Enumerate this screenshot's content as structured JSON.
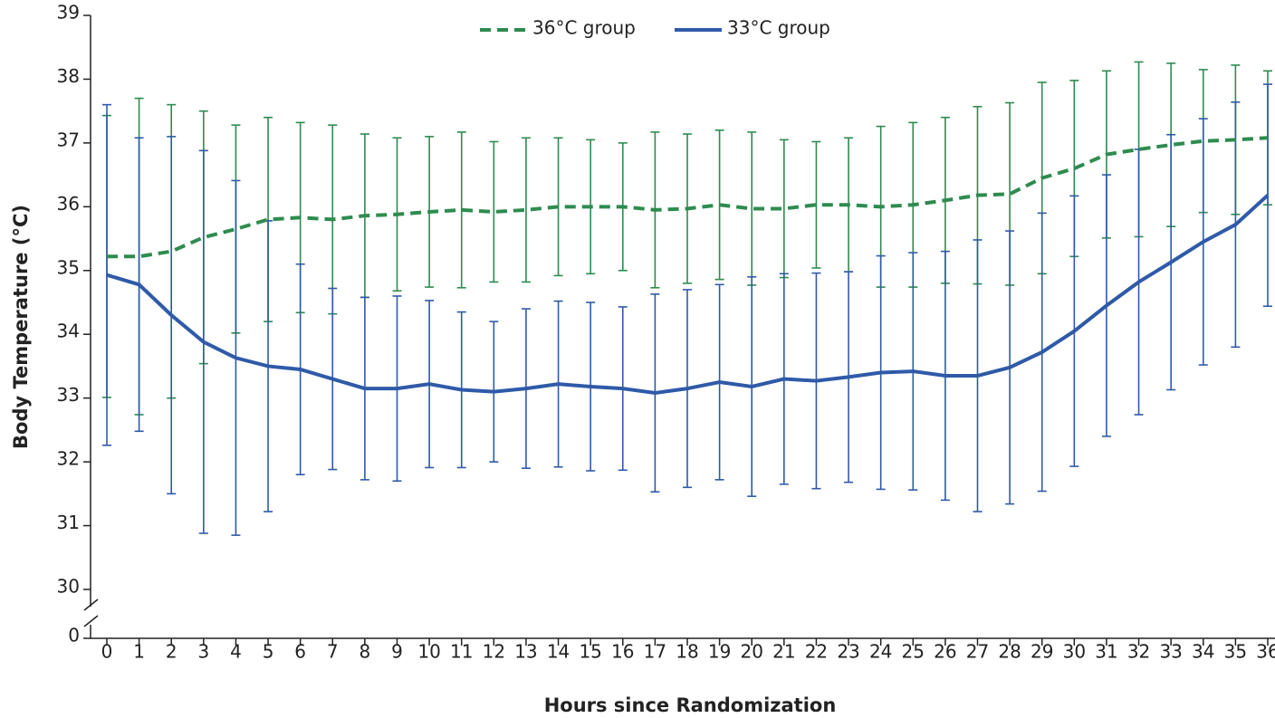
{
  "chart_data": {
    "type": "line",
    "x_label": "Hours since Randomization",
    "y_label": "Body Temperature (°C)",
    "x": [
      0,
      1,
      2,
      3,
      4,
      5,
      6,
      7,
      8,
      9,
      10,
      11,
      12,
      13,
      14,
      15,
      16,
      17,
      18,
      19,
      20,
      21,
      22,
      23,
      24,
      25,
      26,
      27,
      28,
      29,
      30,
      31,
      32,
      33,
      34,
      35,
      36
    ],
    "xlim": [
      0,
      36
    ],
    "xticks": [
      0,
      1,
      2,
      3,
      4,
      5,
      6,
      7,
      8,
      9,
      10,
      11,
      12,
      13,
      14,
      15,
      16,
      17,
      18,
      19,
      20,
      21,
      22,
      23,
      24,
      25,
      26,
      27,
      28,
      29,
      30,
      31,
      32,
      33,
      34,
      35,
      36
    ],
    "ylim": [
      30,
      39
    ],
    "yticks": [
      30,
      31,
      32,
      33,
      34,
      35,
      36,
      37,
      38,
      39
    ],
    "y_break_tick": 0,
    "series": [
      {
        "name": "36°C group",
        "color": "#2e8b4f",
        "dashed": true,
        "values": [
          35.22,
          35.22,
          35.3,
          35.52,
          35.65,
          35.8,
          35.83,
          35.8,
          35.86,
          35.88,
          35.92,
          35.95,
          35.92,
          35.95,
          36.0,
          36.0,
          36.0,
          35.95,
          35.97,
          36.03,
          35.97,
          35.97,
          36.03,
          36.03,
          36.0,
          36.03,
          36.1,
          36.18,
          36.2,
          36.45,
          36.6,
          36.82,
          36.9,
          36.97,
          37.03,
          37.05,
          37.08
        ],
        "errors": [
          2.21,
          2.48,
          2.3,
          1.98,
          1.63,
          1.6,
          1.49,
          1.48,
          1.28,
          1.2,
          1.18,
          1.22,
          1.1,
          1.13,
          1.08,
          1.05,
          1.0,
          1.22,
          1.17,
          1.17,
          1.2,
          1.08,
          0.99,
          1.05,
          1.26,
          1.29,
          1.3,
          1.39,
          1.43,
          1.5,
          1.38,
          1.31,
          1.37,
          1.28,
          1.12,
          1.17,
          1.05
        ]
      },
      {
        "name": "33°C group",
        "color": "#2f5aa8",
        "dashed": false,
        "values": [
          34.93,
          34.78,
          34.3,
          33.88,
          33.63,
          33.5,
          33.45,
          33.3,
          33.15,
          33.15,
          33.22,
          33.13,
          33.1,
          33.15,
          33.22,
          33.18,
          33.15,
          33.08,
          33.15,
          33.25,
          33.18,
          33.3,
          33.27,
          33.33,
          33.4,
          33.42,
          33.35,
          33.35,
          33.48,
          33.72,
          34.05,
          34.45,
          34.82,
          35.13,
          35.45,
          35.72,
          36.18
        ],
        "errors": [
          2.67,
          2.3,
          2.8,
          3.0,
          2.78,
          2.28,
          1.65,
          1.42,
          1.43,
          1.45,
          1.31,
          1.22,
          1.1,
          1.25,
          1.3,
          1.32,
          1.28,
          1.55,
          1.55,
          1.53,
          1.72,
          1.65,
          1.69,
          1.65,
          1.83,
          1.86,
          1.95,
          2.13,
          2.14,
          2.18,
          2.12,
          2.05,
          2.08,
          2.0,
          1.93,
          1.92,
          1.74
        ]
      }
    ]
  }
}
